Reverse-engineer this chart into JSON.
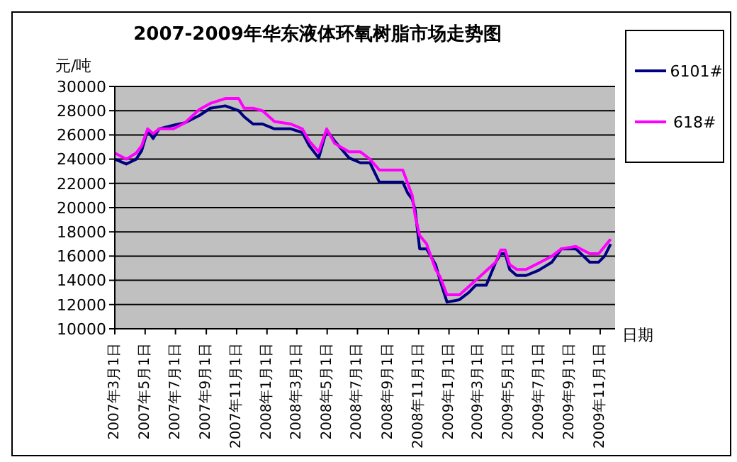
{
  "chart_data": {
    "type": "line",
    "title": "2007-2009年华东液体环氧树脂市场走势图",
    "ylabel": "元/吨",
    "xlabel": "日期",
    "x": [
      "2007-03-01",
      "2007-03-24",
      "2007-04-13",
      "2007-04-24",
      "2007-05-06",
      "2007-05-17",
      "2007-05-29",
      "2007-06-27",
      "2007-07-20",
      "2007-08-18",
      "2007-09-09",
      "2007-10-09",
      "2007-11-05",
      "2007-11-16",
      "2007-12-04",
      "2007-12-23",
      "2008-01-16",
      "2008-02-18",
      "2008-03-12",
      "2008-03-26",
      "2008-04-14",
      "2008-04-30",
      "2008-05-16",
      "2008-06-14",
      "2008-07-07",
      "2008-07-26",
      "2008-08-14",
      "2008-09-30",
      "2008-10-10",
      "2008-10-19",
      "2008-10-25",
      "2008-11-03",
      "2008-11-17",
      "2008-12-05",
      "2008-12-14",
      "2008-12-28",
      "2009-01-22",
      "2009-02-10",
      "2009-02-24",
      "2009-03-17",
      "2009-04-05",
      "2009-04-15",
      "2009-04-24",
      "2009-05-03",
      "2009-05-17",
      "2009-06-05",
      "2009-06-29",
      "2009-07-27",
      "2009-08-15",
      "2009-09-13",
      "2009-10-11",
      "2009-10-29",
      "2009-11-10",
      "2009-11-22"
    ],
    "series": [
      {
        "name": "6101#",
        "color": "#000080",
        "values": [
          24000,
          23600,
          24000,
          24700,
          26400,
          25700,
          26500,
          26800,
          27000,
          27600,
          28200,
          28400,
          28000,
          27500,
          26900,
          26900,
          26500,
          26500,
          26200,
          25100,
          24100,
          26400,
          25500,
          24100,
          23700,
          23700,
          22100,
          22100,
          21200,
          20700,
          19800,
          16600,
          16600,
          15300,
          14000,
          12200,
          12400,
          13000,
          13600,
          13600,
          15500,
          16200,
          16200,
          14900,
          14400,
          14400,
          14800,
          15500,
          16600,
          16600,
          15500,
          15500,
          16000,
          17000
        ]
      },
      {
        "name": "618#",
        "color": "#ff00ff",
        "values": [
          24500,
          24000,
          24500,
          25100,
          26500,
          26100,
          26500,
          26500,
          27000,
          28100,
          28600,
          29000,
          29000,
          28200,
          28200,
          28000,
          27100,
          26900,
          26500,
          25500,
          24600,
          26500,
          25300,
          24600,
          24600,
          24000,
          23100,
          23100,
          22000,
          21000,
          19300,
          17700,
          17000,
          14900,
          14300,
          12800,
          12800,
          13500,
          14000,
          14800,
          15500,
          16500,
          16500,
          15300,
          14900,
          14900,
          15400,
          16000,
          16600,
          16800,
          16200,
          16200,
          16800,
          17400
        ]
      }
    ],
    "xlim": [
      "2007-03-01",
      "2009-12-01"
    ],
    "xticks": [
      {
        "value": "2007-03-01",
        "label": "2007年3月1日"
      },
      {
        "value": "2007-05-01",
        "label": "2007年5月1日"
      },
      {
        "value": "2007-07-01",
        "label": "2007年7月1日"
      },
      {
        "value": "2007-09-01",
        "label": "2007年9月1日"
      },
      {
        "value": "2007-11-01",
        "label": "2007年11月1日"
      },
      {
        "value": "2008-01-01",
        "label": "2008年1月1日"
      },
      {
        "value": "2008-03-01",
        "label": "2008年3月1日"
      },
      {
        "value": "2008-05-01",
        "label": "2008年5月1日"
      },
      {
        "value": "2008-07-01",
        "label": "2008年7月1日"
      },
      {
        "value": "2008-09-01",
        "label": "2008年9月1日"
      },
      {
        "value": "2008-11-01",
        "label": "2008年11月1日"
      },
      {
        "value": "2009-01-01",
        "label": "2009年1月1日"
      },
      {
        "value": "2009-03-01",
        "label": "2009年3月1日"
      },
      {
        "value": "2009-05-01",
        "label": "2009年5月1日"
      },
      {
        "value": "2009-07-01",
        "label": "2009年7月1日"
      },
      {
        "value": "2009-09-01",
        "label": "2009年9月1日"
      },
      {
        "value": "2009-11-01",
        "label": "2009年11月1日"
      }
    ],
    "ylim": [
      10000,
      30000
    ],
    "yticks": [
      10000,
      12000,
      14000,
      16000,
      18000,
      20000,
      22000,
      24000,
      26000,
      28000,
      30000
    ],
    "grid": "y",
    "legend": "right",
    "marker": "none",
    "line_style": "solid"
  }
}
